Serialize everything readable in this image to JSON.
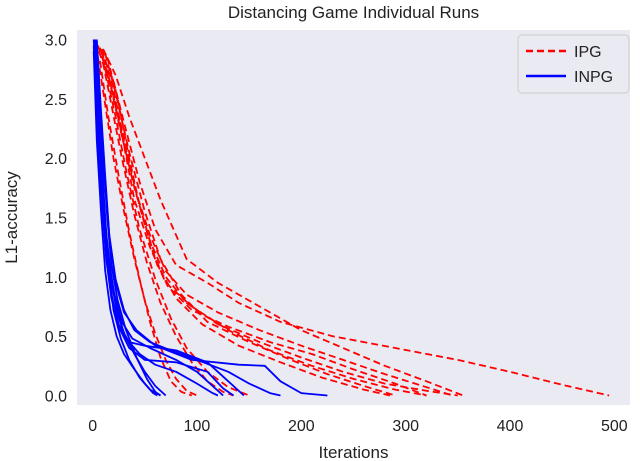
{
  "chart_data": {
    "type": "line",
    "title": "Distancing Game Individual Runs",
    "xlabel": "Iterations",
    "ylabel": "L1-accuracy",
    "xlim": [
      -15,
      515
    ],
    "ylim": [
      -0.08,
      3.08
    ],
    "xticks": [
      0,
      100,
      200,
      300,
      400,
      500
    ],
    "yticks": [
      0.0,
      0.5,
      1.0,
      1.5,
      2.0,
      2.5,
      3.0
    ],
    "xtick_labels": [
      "0",
      "100",
      "200",
      "300",
      "400",
      "500"
    ],
    "ytick_labels": [
      "0.0",
      "0.5",
      "1.0",
      "1.5",
      "2.0",
      "2.5",
      "3.0"
    ],
    "background": "#eaeaf2",
    "grid": false,
    "legend_position": "top-right",
    "legend": [
      {
        "label": "IPG",
        "color": "#ff0000",
        "style": "dashed"
      },
      {
        "label": "INPG",
        "color": "#0000ff",
        "style": "solid"
      }
    ],
    "series": [
      {
        "group": "IPG",
        "color": "#ff0000",
        "style": "dashed",
        "points": [
          [
            5,
            2.95
          ],
          [
            15,
            2.7
          ],
          [
            25,
            2.3
          ],
          [
            40,
            1.75
          ],
          [
            55,
            1.3
          ],
          [
            70,
            1.0
          ],
          [
            90,
            0.78
          ],
          [
            120,
            0.6
          ],
          [
            160,
            0.45
          ],
          [
            200,
            0.32
          ],
          [
            240,
            0.2
          ],
          [
            280,
            0.1
          ],
          [
            320,
            0.04
          ],
          [
            350,
            0.0
          ]
        ]
      },
      {
        "group": "IPG",
        "color": "#ff0000",
        "style": "dashed",
        "points": [
          [
            8,
            2.9
          ],
          [
            20,
            2.65
          ],
          [
            30,
            2.3
          ],
          [
            45,
            1.8
          ],
          [
            60,
            1.4
          ],
          [
            80,
            1.1
          ],
          [
            110,
            0.95
          ],
          [
            140,
            0.78
          ],
          [
            180,
            0.62
          ],
          [
            230,
            0.5
          ],
          [
            290,
            0.4
          ],
          [
            350,
            0.3
          ],
          [
            400,
            0.2
          ],
          [
            450,
            0.09
          ],
          [
            495,
            0.0
          ]
        ]
      },
      {
        "group": "IPG",
        "color": "#ff0000",
        "style": "dashed",
        "points": [
          [
            10,
            2.92
          ],
          [
            22,
            2.7
          ],
          [
            35,
            2.35
          ],
          [
            50,
            2.0
          ],
          [
            65,
            1.65
          ],
          [
            75,
            1.45
          ],
          [
            90,
            1.15
          ],
          [
            120,
            0.95
          ],
          [
            160,
            0.75
          ],
          [
            200,
            0.55
          ],
          [
            240,
            0.4
          ],
          [
            280,
            0.25
          ],
          [
            320,
            0.12
          ],
          [
            355,
            0.0
          ]
        ]
      },
      {
        "group": "IPG",
        "color": "#ff0000",
        "style": "dashed",
        "points": [
          [
            6,
            2.9
          ],
          [
            18,
            2.6
          ],
          [
            28,
            2.2
          ],
          [
            40,
            1.65
          ],
          [
            55,
            1.25
          ],
          [
            70,
            0.95
          ],
          [
            95,
            0.75
          ],
          [
            130,
            0.55
          ],
          [
            170,
            0.38
          ],
          [
            210,
            0.25
          ],
          [
            250,
            0.14
          ],
          [
            290,
            0.05
          ],
          [
            320,
            0.0
          ]
        ]
      },
      {
        "group": "IPG",
        "color": "#ff0000",
        "style": "dashed",
        "points": [
          [
            12,
            2.88
          ],
          [
            22,
            2.55
          ],
          [
            35,
            2.05
          ],
          [
            50,
            1.55
          ],
          [
            65,
            1.15
          ],
          [
            85,
            0.85
          ],
          [
            110,
            0.62
          ],
          [
            150,
            0.45
          ],
          [
            190,
            0.3
          ],
          [
            225,
            0.18
          ],
          [
            260,
            0.08
          ],
          [
            290,
            0.0
          ]
        ]
      },
      {
        "group": "IPG",
        "color": "#ff0000",
        "style": "dashed",
        "points": [
          [
            7,
            2.93
          ],
          [
            15,
            2.7
          ],
          [
            25,
            2.35
          ],
          [
            35,
            1.95
          ],
          [
            48,
            1.5
          ],
          [
            62,
            1.1
          ],
          [
            80,
            0.82
          ],
          [
            105,
            0.6
          ],
          [
            140,
            0.42
          ],
          [
            180,
            0.28
          ],
          [
            220,
            0.15
          ],
          [
            260,
            0.05
          ],
          [
            285,
            0.0
          ]
        ]
      },
      {
        "group": "IPG",
        "color": "#ff0000",
        "style": "dashed",
        "points": [
          [
            14,
            2.85
          ],
          [
            24,
            2.5
          ],
          [
            35,
            2.0
          ],
          [
            45,
            1.6
          ],
          [
            58,
            1.2
          ],
          [
            72,
            0.92
          ],
          [
            95,
            0.72
          ],
          [
            130,
            0.58
          ],
          [
            170,
            0.45
          ],
          [
            210,
            0.35
          ],
          [
            250,
            0.22
          ],
          [
            290,
            0.1
          ],
          [
            320,
            0.0
          ]
        ]
      },
      {
        "group": "IPG",
        "color": "#ff0000",
        "style": "dashed",
        "points": [
          [
            9,
            2.92
          ],
          [
            19,
            2.62
          ],
          [
            30,
            2.15
          ],
          [
            42,
            1.7
          ],
          [
            55,
            1.35
          ],
          [
            70,
            1.05
          ],
          [
            90,
            0.85
          ],
          [
            120,
            0.7
          ],
          [
            160,
            0.55
          ],
          [
            200,
            0.42
          ],
          [
            240,
            0.3
          ],
          [
            280,
            0.18
          ],
          [
            320,
            0.07
          ],
          [
            345,
            0.0
          ]
        ]
      },
      {
        "group": "IPG",
        "color": "#ff0000",
        "style": "dashed",
        "points": [
          [
            5,
            2.85
          ],
          [
            12,
            2.45
          ],
          [
            20,
            2.0
          ],
          [
            30,
            1.55
          ],
          [
            40,
            1.15
          ],
          [
            50,
            0.8
          ],
          [
            60,
            0.52
          ],
          [
            70,
            0.3
          ],
          [
            80,
            0.14
          ],
          [
            90,
            0.04
          ],
          [
            100,
            0.0
          ]
        ]
      },
      {
        "group": "IPG",
        "color": "#ff0000",
        "style": "dashed",
        "points": [
          [
            7,
            2.82
          ],
          [
            15,
            2.35
          ],
          [
            25,
            1.85
          ],
          [
            35,
            1.38
          ],
          [
            45,
            0.98
          ],
          [
            55,
            0.62
          ],
          [
            65,
            0.32
          ],
          [
            75,
            0.12
          ],
          [
            85,
            0.03
          ],
          [
            95,
            0.0
          ]
        ]
      },
      {
        "group": "IPG",
        "color": "#ff0000",
        "style": "dashed",
        "points": [
          [
            10,
            2.8
          ],
          [
            18,
            2.45
          ],
          [
            28,
            2.0
          ],
          [
            40,
            1.52
          ],
          [
            52,
            1.12
          ],
          [
            65,
            0.78
          ],
          [
            80,
            0.5
          ],
          [
            95,
            0.28
          ],
          [
            110,
            0.12
          ],
          [
            125,
            0.03
          ],
          [
            135,
            0.0
          ]
        ]
      },
      {
        "group": "IPG",
        "color": "#ff0000",
        "style": "dashed",
        "points": [
          [
            12,
            2.75
          ],
          [
            22,
            2.35
          ],
          [
            32,
            1.9
          ],
          [
            45,
            1.4
          ],
          [
            60,
            0.98
          ],
          [
            75,
            0.65
          ],
          [
            90,
            0.4
          ],
          [
            110,
            0.2
          ],
          [
            130,
            0.07
          ],
          [
            150,
            0.0
          ]
        ]
      },
      {
        "group": "INPG",
        "color": "#0000ff",
        "style": "solid",
        "points": [
          [
            2,
            3.0
          ],
          [
            6,
            2.5
          ],
          [
            10,
            2.0
          ],
          [
            14,
            1.5
          ],
          [
            18,
            1.1
          ],
          [
            24,
            0.8
          ],
          [
            32,
            0.55
          ],
          [
            42,
            0.32
          ],
          [
            52,
            0.14
          ],
          [
            60,
            0.03
          ],
          [
            65,
            0.0
          ]
        ]
      },
      {
        "group": "INPG",
        "color": "#0000ff",
        "style": "solid",
        "points": [
          [
            3,
            3.0
          ],
          [
            6,
            2.3
          ],
          [
            9,
            1.7
          ],
          [
            13,
            1.2
          ],
          [
            18,
            0.85
          ],
          [
            25,
            0.6
          ],
          [
            35,
            0.45
          ],
          [
            50,
            0.42
          ],
          [
            80,
            0.38
          ],
          [
            110,
            0.28
          ],
          [
            130,
            0.12
          ],
          [
            145,
            0.0
          ]
        ]
      },
      {
        "group": "INPG",
        "color": "#0000ff",
        "style": "solid",
        "points": [
          [
            4,
            3.0
          ],
          [
            7,
            2.5
          ],
          [
            11,
            1.9
          ],
          [
            16,
            1.35
          ],
          [
            22,
            0.95
          ],
          [
            30,
            0.7
          ],
          [
            42,
            0.55
          ],
          [
            60,
            0.42
          ],
          [
            95,
            0.3
          ],
          [
            140,
            0.26
          ],
          [
            165,
            0.25
          ],
          [
            180,
            0.12
          ],
          [
            200,
            0.02
          ],
          [
            225,
            0.0
          ]
        ]
      },
      {
        "group": "INPG",
        "color": "#0000ff",
        "style": "solid",
        "points": [
          [
            1,
            2.95
          ],
          [
            5,
            2.2
          ],
          [
            9,
            1.6
          ],
          [
            13,
            1.15
          ],
          [
            18,
            0.82
          ],
          [
            25,
            0.58
          ],
          [
            35,
            0.4
          ],
          [
            50,
            0.3
          ],
          [
            80,
            0.28
          ],
          [
            110,
            0.2
          ],
          [
            125,
            0.06
          ],
          [
            135,
            0.0
          ]
        ]
      },
      {
        "group": "INPG",
        "color": "#0000ff",
        "style": "solid",
        "points": [
          [
            2,
            2.98
          ],
          [
            5,
            2.4
          ],
          [
            9,
            1.8
          ],
          [
            13,
            1.3
          ],
          [
            18,
            0.95
          ],
          [
            24,
            0.68
          ],
          [
            32,
            0.48
          ],
          [
            45,
            0.35
          ],
          [
            60,
            0.26
          ],
          [
            80,
            0.2
          ],
          [
            100,
            0.1
          ],
          [
            115,
            0.02
          ],
          [
            120,
            0.0
          ]
        ]
      },
      {
        "group": "INPG",
        "color": "#0000ff",
        "style": "solid",
        "points": [
          [
            3,
            2.95
          ],
          [
            7,
            2.3
          ],
          [
            11,
            1.65
          ],
          [
            15,
            1.1
          ],
          [
            20,
            0.72
          ],
          [
            27,
            0.48
          ],
          [
            35,
            0.3
          ],
          [
            45,
            0.15
          ],
          [
            55,
            0.05
          ],
          [
            65,
            0.0
          ]
        ]
      },
      {
        "group": "INPG",
        "color": "#0000ff",
        "style": "solid",
        "points": [
          [
            1,
            3.0
          ],
          [
            4,
            2.6
          ],
          [
            8,
            2.0
          ],
          [
            12,
            1.45
          ],
          [
            17,
            1.05
          ],
          [
            23,
            0.75
          ],
          [
            30,
            0.52
          ],
          [
            40,
            0.35
          ],
          [
            50,
            0.2
          ],
          [
            60,
            0.08
          ],
          [
            70,
            0.0
          ]
        ]
      },
      {
        "group": "INPG",
        "color": "#0000ff",
        "style": "solid",
        "points": [
          [
            2,
            2.96
          ],
          [
            5,
            2.35
          ],
          [
            9,
            1.75
          ],
          [
            14,
            1.25
          ],
          [
            20,
            0.88
          ],
          [
            28,
            0.62
          ],
          [
            38,
            0.48
          ],
          [
            55,
            0.4
          ],
          [
            80,
            0.3
          ],
          [
            100,
            0.2
          ],
          [
            115,
            0.08
          ],
          [
            125,
            0.0
          ]
        ]
      },
      {
        "group": "INPG",
        "color": "#0000ff",
        "style": "solid",
        "points": [
          [
            4,
            2.98
          ],
          [
            8,
            2.4
          ],
          [
            12,
            1.85
          ],
          [
            16,
            1.35
          ],
          [
            22,
            0.98
          ],
          [
            30,
            0.72
          ],
          [
            40,
            0.55
          ],
          [
            55,
            0.45
          ],
          [
            75,
            0.38
          ],
          [
            100,
            0.3
          ],
          [
            130,
            0.2
          ],
          [
            150,
            0.1
          ],
          [
            170,
            0.02
          ],
          [
            180,
            0.0
          ]
        ]
      },
      {
        "group": "INPG",
        "color": "#0000ff",
        "style": "solid",
        "points": [
          [
            1,
            2.9
          ],
          [
            4,
            2.15
          ],
          [
            8,
            1.55
          ],
          [
            12,
            1.05
          ],
          [
            17,
            0.72
          ],
          [
            23,
            0.5
          ],
          [
            30,
            0.35
          ],
          [
            40,
            0.22
          ],
          [
            50,
            0.1
          ],
          [
            58,
            0.02
          ],
          [
            62,
            0.0
          ]
        ]
      }
    ]
  }
}
